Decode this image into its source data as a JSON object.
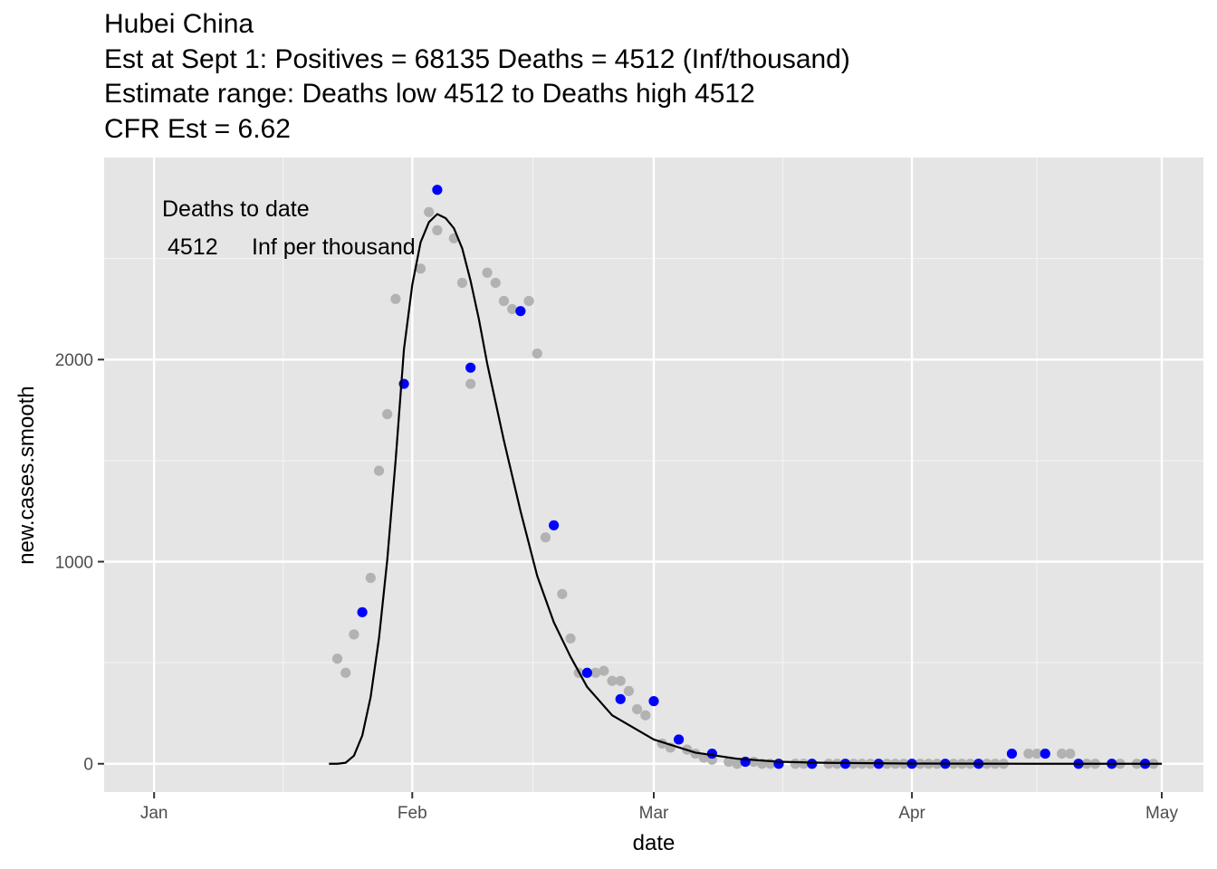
{
  "chart_data": {
    "type": "scatter",
    "title_lines": [
      "Hubei China",
      "Est at Sept 1: Positives = 68135 Deaths = 4512 (Inf/thousand)",
      "Estimate range: Deaths low 4512 to Deaths high 4512",
      "CFR Est = 6.62"
    ],
    "xlabel": "date",
    "ylabel": "new.cases.smooth",
    "x_ticks": [
      {
        "date": "2020-01-01",
        "label": "Jan"
      },
      {
        "date": "2020-02-01",
        "label": "Feb"
      },
      {
        "date": "2020-03-01",
        "label": "Mar"
      },
      {
        "date": "2020-04-01",
        "label": "Apr"
      },
      {
        "date": "2020-05-01",
        "label": "May"
      }
    ],
    "y_ticks": [
      0,
      1000,
      2000
    ],
    "xlim": [
      "2019-12-26",
      "2020-05-06"
    ],
    "ylim": [
      -140,
      3000
    ],
    "grid": true,
    "annotation": {
      "line1": "Deaths to date",
      "line2_value": "4512",
      "line2_text": "Inf per thousand"
    },
    "colors": {
      "panel": "#e5e5e5",
      "grid_major": "#ffffff",
      "grid_minor": "#f2f2f2",
      "gray_points": "#b2b2b2",
      "blue_points": "#0000ff",
      "fit_line": "#000000"
    },
    "series": [
      {
        "kind": "gray_points",
        "x": [
          "2020-01-23",
          "2020-01-24",
          "2020-01-25",
          "2020-01-27",
          "2020-01-28",
          "2020-01-29",
          "2020-01-30",
          "2020-02-02",
          "2020-02-03",
          "2020-02-04",
          "2020-02-06",
          "2020-02-07",
          "2020-02-08",
          "2020-02-10",
          "2020-02-11",
          "2020-02-12",
          "2020-02-13",
          "2020-02-15",
          "2020-02-16",
          "2020-02-17",
          "2020-02-19",
          "2020-02-20",
          "2020-02-21",
          "2020-02-23",
          "2020-02-24",
          "2020-02-25",
          "2020-02-26",
          "2020-02-27",
          "2020-02-28",
          "2020-02-29",
          "2020-03-02",
          "2020-03-03",
          "2020-03-05",
          "2020-03-06",
          "2020-03-07",
          "2020-03-08",
          "2020-03-10",
          "2020-03-11",
          "2020-03-13",
          "2020-03-14",
          "2020-03-15",
          "2020-03-16",
          "2020-03-18",
          "2020-03-19",
          "2020-03-20",
          "2020-03-22",
          "2020-03-23",
          "2020-03-25",
          "2020-03-26",
          "2020-03-27",
          "2020-03-29",
          "2020-03-30",
          "2020-03-31",
          "2020-04-02",
          "2020-04-03",
          "2020-04-04",
          "2020-04-06",
          "2020-04-07",
          "2020-04-08",
          "2020-04-10",
          "2020-04-11",
          "2020-04-12",
          "2020-04-15",
          "2020-04-16",
          "2020-04-17",
          "2020-04-19",
          "2020-04-20",
          "2020-04-22",
          "2020-04-23",
          "2020-04-25",
          "2020-04-26",
          "2020-04-28",
          "2020-04-29",
          "2020-04-30"
        ],
        "y": [
          520,
          450,
          640,
          920,
          1450,
          1730,
          2300,
          2450,
          2730,
          2640,
          2600,
          2380,
          1880,
          2430,
          2380,
          2290,
          2250,
          2290,
          2030,
          1120,
          840,
          620,
          450,
          450,
          460,
          410,
          410,
          360,
          270,
          240,
          100,
          80,
          70,
          50,
          30,
          20,
          10,
          0,
          10,
          0,
          0,
          0,
          0,
          0,
          0,
          0,
          0,
          0,
          0,
          0,
          0,
          0,
          0,
          0,
          0,
          0,
          0,
          0,
          0,
          0,
          0,
          0,
          50,
          50,
          50,
          50,
          50,
          0,
          0,
          0,
          0,
          0,
          0,
          0
        ]
      },
      {
        "kind": "blue_points",
        "x": [
          "2020-01-26",
          "2020-01-31",
          "2020-02-04",
          "2020-02-08",
          "2020-02-14",
          "2020-02-18",
          "2020-02-22",
          "2020-02-26",
          "2020-03-01",
          "2020-03-04",
          "2020-03-08",
          "2020-03-12",
          "2020-03-16",
          "2020-03-20",
          "2020-03-24",
          "2020-03-28",
          "2020-04-01",
          "2020-04-05",
          "2020-04-09",
          "2020-04-13",
          "2020-04-17",
          "2020-04-21",
          "2020-04-25",
          "2020-04-29"
        ],
        "y": [
          750,
          1880,
          2840,
          1960,
          2240,
          1180,
          450,
          320,
          310,
          120,
          50,
          10,
          0,
          0,
          0,
          0,
          0,
          0,
          0,
          50,
          50,
          0,
          0,
          0
        ]
      },
      {
        "kind": "fit_line",
        "x": [
          "2020-01-22",
          "2020-01-23",
          "2020-01-24",
          "2020-01-25",
          "2020-01-26",
          "2020-01-27",
          "2020-01-28",
          "2020-01-29",
          "2020-01-30",
          "2020-01-31",
          "2020-02-01",
          "2020-02-02",
          "2020-02-03",
          "2020-02-04",
          "2020-02-05",
          "2020-02-06",
          "2020-02-07",
          "2020-02-08",
          "2020-02-09",
          "2020-02-10",
          "2020-02-12",
          "2020-02-14",
          "2020-02-16",
          "2020-02-18",
          "2020-02-20",
          "2020-02-22",
          "2020-02-25",
          "2020-03-01",
          "2020-03-06",
          "2020-03-11",
          "2020-03-16",
          "2020-03-21",
          "2020-04-01",
          "2020-04-15",
          "2020-05-01"
        ],
        "y": [
          0,
          0,
          5,
          40,
          140,
          330,
          620,
          1010,
          1500,
          2050,
          2370,
          2580,
          2680,
          2720,
          2700,
          2650,
          2550,
          2390,
          2200,
          1980,
          1600,
          1250,
          930,
          700,
          530,
          380,
          240,
          120,
          55,
          25,
          10,
          5,
          1,
          0,
          0
        ]
      }
    ]
  }
}
